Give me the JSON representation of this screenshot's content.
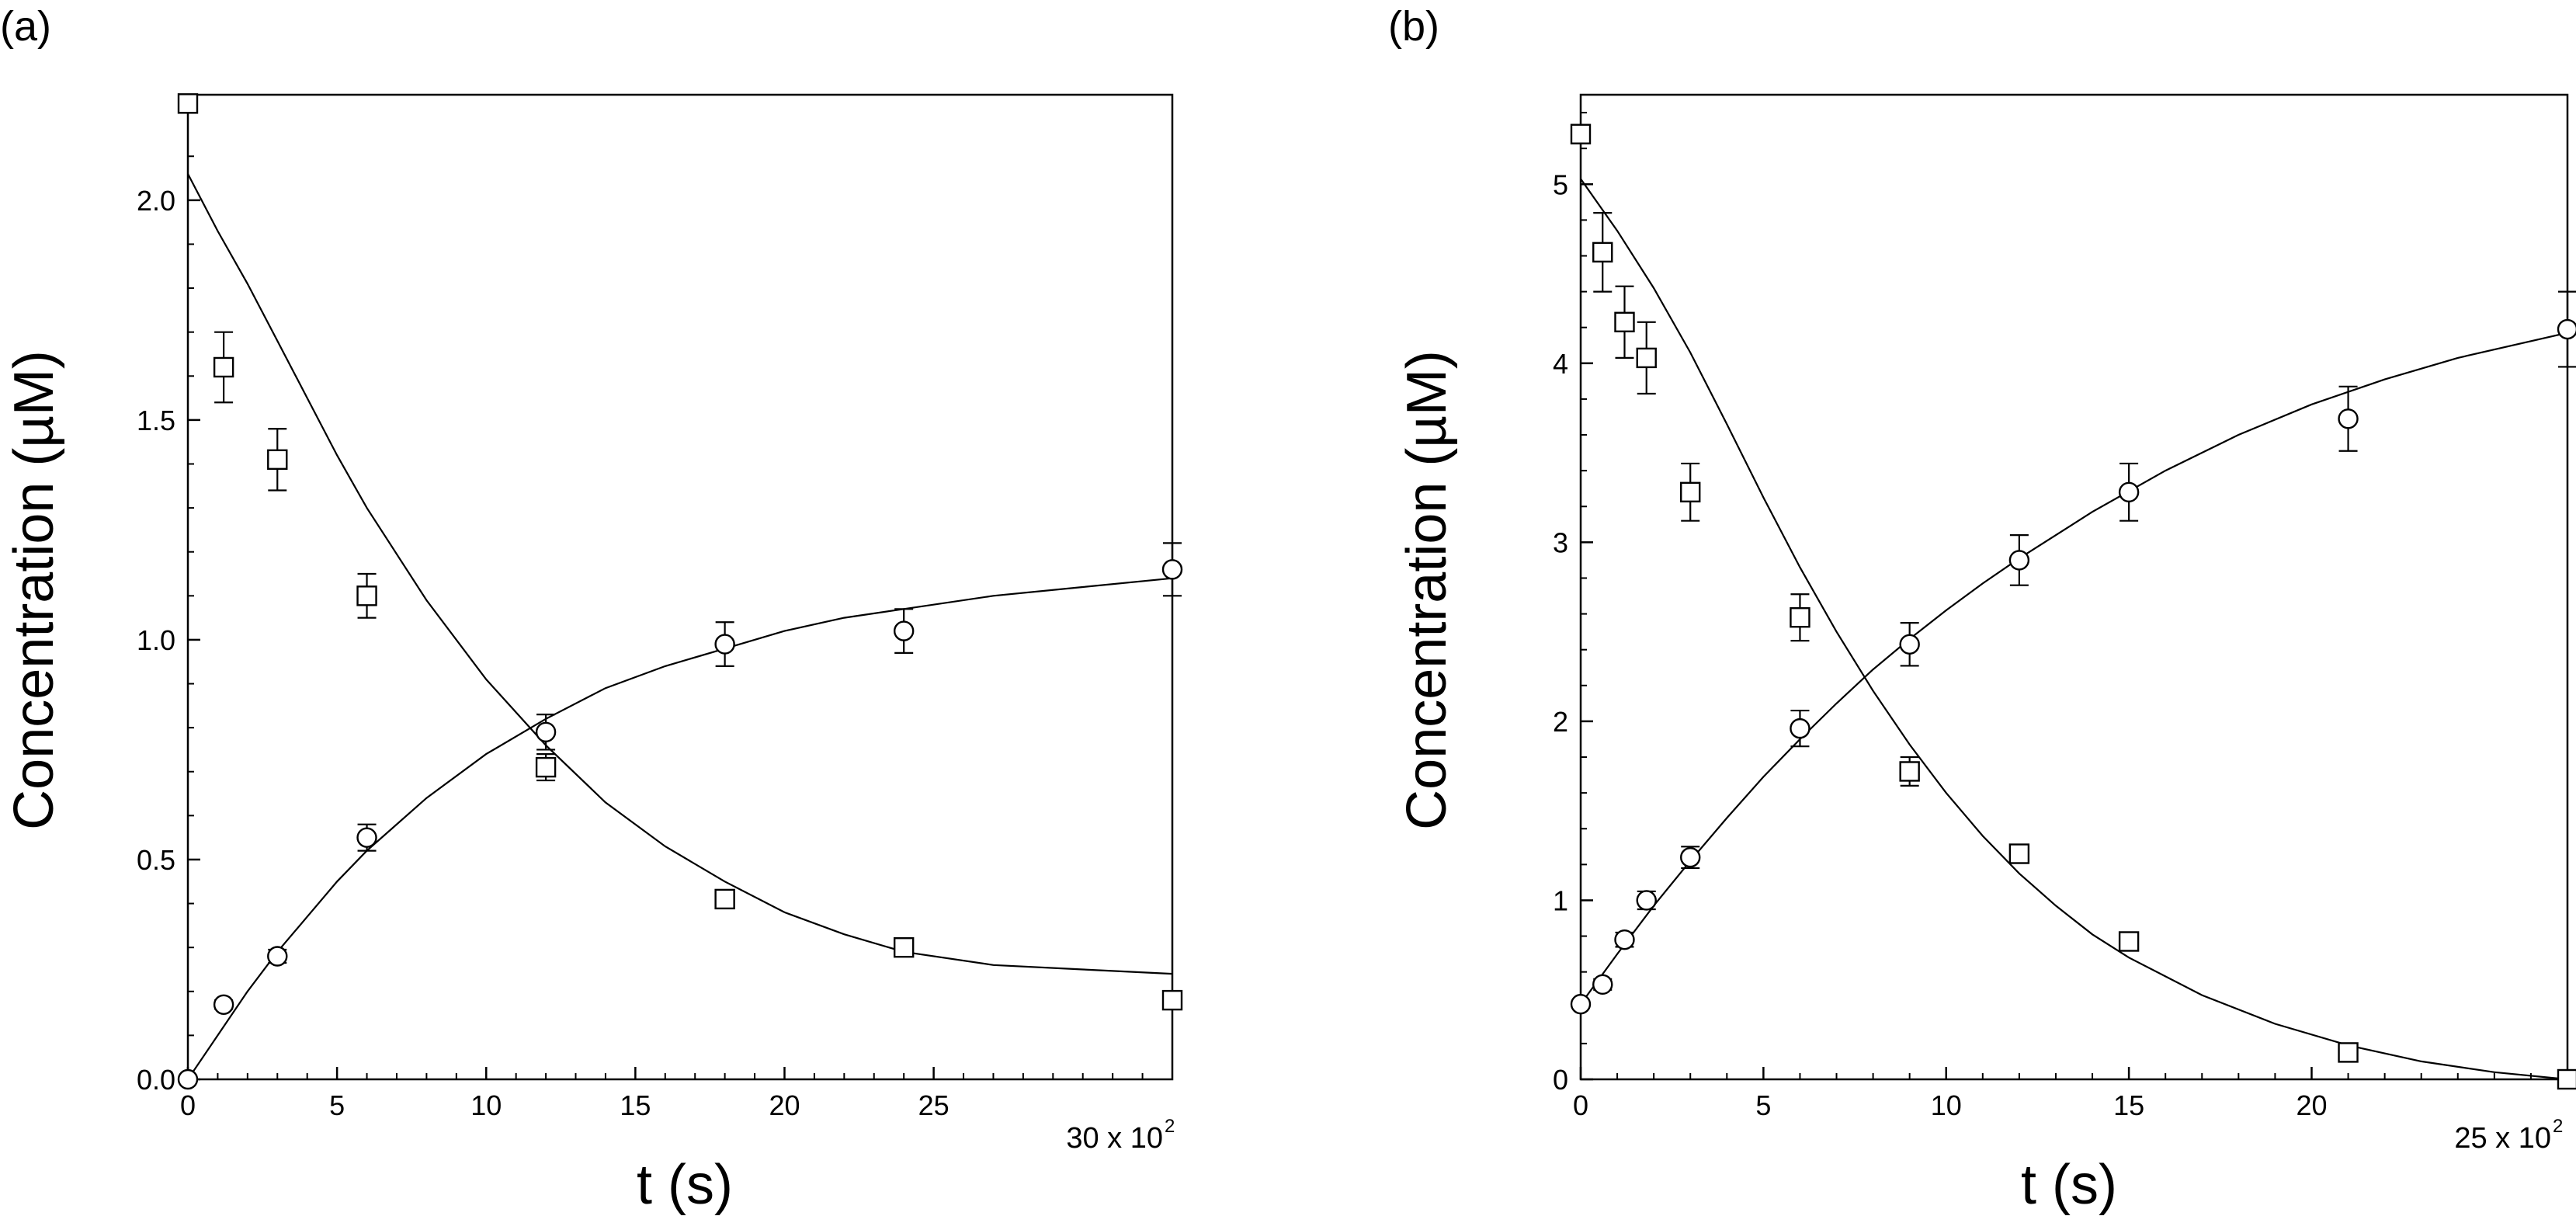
{
  "figure": {
    "background": "#ffffff",
    "ink": "#000000"
  },
  "chart_data": [
    {
      "type": "scatter",
      "panel_label": "(a)",
      "xlabel": "t (s)",
      "ylabel": "Concentration (µM)",
      "x_multiplier": {
        "text": "30 x 10",
        "exponent": "2"
      },
      "xlim": [
        0,
        33
      ],
      "ylim": [
        0,
        2.24
      ],
      "x_ticks": [
        0,
        5,
        10,
        15,
        20,
        25
      ],
      "x_tick_labels": [
        "0",
        "5",
        "10",
        "15",
        "20",
        "25"
      ],
      "y_ticks": [
        0,
        0.5,
        1.0,
        1.5,
        2.0
      ],
      "y_tick_labels": [
        "0.0",
        "0.5",
        "1.0",
        "1.5",
        "2.0"
      ],
      "grid": false,
      "series": [
        {
          "marker": "square",
          "points": [
            {
              "x": 0,
              "y": 2.22,
              "err": 0
            },
            {
              "x": 1.2,
              "y": 1.62,
              "err": 0.08
            },
            {
              "x": 3,
              "y": 1.41,
              "err": 0.07
            },
            {
              "x": 6,
              "y": 1.1,
              "err": 0.05
            },
            {
              "x": 12,
              "y": 0.71,
              "err": 0.03
            },
            {
              "x": 18,
              "y": 0.41,
              "err": 0.02
            },
            {
              "x": 24,
              "y": 0.3,
              "err": 0.02
            },
            {
              "x": 33,
              "y": 0.18,
              "err": 0.02
            }
          ],
          "fit": [
            [
              0,
              2.06
            ],
            [
              1,
              1.93
            ],
            [
              2,
              1.81
            ],
            [
              3,
              1.68
            ],
            [
              4,
              1.55
            ],
            [
              5,
              1.42
            ],
            [
              6,
              1.3
            ],
            [
              8,
              1.09
            ],
            [
              10,
              0.91
            ],
            [
              12,
              0.76
            ],
            [
              14,
              0.63
            ],
            [
              16,
              0.53
            ],
            [
              18,
              0.45
            ],
            [
              20,
              0.38
            ],
            [
              22,
              0.33
            ],
            [
              24,
              0.29
            ],
            [
              27,
              0.26
            ],
            [
              30,
              0.25
            ],
            [
              33,
              0.24
            ]
          ]
        },
        {
          "marker": "circle",
          "points": [
            {
              "x": 0,
              "y": 0.0,
              "err": 0
            },
            {
              "x": 1.2,
              "y": 0.17,
              "err": 0.01
            },
            {
              "x": 3,
              "y": 0.28,
              "err": 0.015
            },
            {
              "x": 6,
              "y": 0.55,
              "err": 0.03
            },
            {
              "x": 12,
              "y": 0.79,
              "err": 0.04
            },
            {
              "x": 18,
              "y": 0.99,
              "err": 0.05
            },
            {
              "x": 24,
              "y": 1.02,
              "err": 0.05
            },
            {
              "x": 33,
              "y": 1.16,
              "err": 0.06
            }
          ],
          "fit": [
            [
              0,
              0.0
            ],
            [
              1,
              0.1
            ],
            [
              2,
              0.2
            ],
            [
              3,
              0.29
            ],
            [
              4,
              0.37
            ],
            [
              5,
              0.45
            ],
            [
              6,
              0.52
            ],
            [
              8,
              0.64
            ],
            [
              10,
              0.74
            ],
            [
              12,
              0.82
            ],
            [
              14,
              0.89
            ],
            [
              16,
              0.94
            ],
            [
              18,
              0.98
            ],
            [
              20,
              1.02
            ],
            [
              22,
              1.05
            ],
            [
              24,
              1.07
            ],
            [
              27,
              1.1
            ],
            [
              30,
              1.12
            ],
            [
              33,
              1.14
            ]
          ]
        }
      ]
    },
    {
      "type": "scatter",
      "panel_label": "(b)",
      "xlabel": "t (s)",
      "ylabel": "Concentration (µM)",
      "x_multiplier": {
        "text": "25 x 10",
        "exponent": "2"
      },
      "xlim": [
        0,
        27
      ],
      "ylim": [
        0,
        5.5
      ],
      "x_ticks": [
        0,
        5,
        10,
        15,
        20
      ],
      "x_tick_labels": [
        "0",
        "5",
        "10",
        "15",
        "20"
      ],
      "y_ticks": [
        0,
        1,
        2,
        3,
        4,
        5
      ],
      "y_tick_labels": [
        "0",
        "1",
        "2",
        "3",
        "4",
        "5"
      ],
      "grid": false,
      "series": [
        {
          "marker": "square",
          "points": [
            {
              "x": 0,
              "y": 5.28,
              "err": 0
            },
            {
              "x": 0.6,
              "y": 4.62,
              "err": 0.22
            },
            {
              "x": 1.2,
              "y": 4.23,
              "err": 0.2
            },
            {
              "x": 1.8,
              "y": 4.03,
              "err": 0.2
            },
            {
              "x": 3,
              "y": 3.28,
              "err": 0.16
            },
            {
              "x": 6,
              "y": 2.58,
              "err": 0.13
            },
            {
              "x": 9,
              "y": 1.72,
              "err": 0.08
            },
            {
              "x": 12,
              "y": 1.26,
              "err": 0.04
            },
            {
              "x": 15,
              "y": 0.77,
              "err": 0.04
            },
            {
              "x": 21,
              "y": 0.15,
              "err": 0.03
            },
            {
              "x": 27,
              "y": 0.0,
              "err": 0
            }
          ],
          "fit": [
            [
              0,
              5.03
            ],
            [
              1,
              4.74
            ],
            [
              2,
              4.42
            ],
            [
              3,
              4.06
            ],
            [
              4,
              3.66
            ],
            [
              5,
              3.25
            ],
            [
              6,
              2.86
            ],
            [
              7,
              2.5
            ],
            [
              8,
              2.17
            ],
            [
              9,
              1.87
            ],
            [
              10,
              1.6
            ],
            [
              11,
              1.36
            ],
            [
              12,
              1.15
            ],
            [
              13,
              0.97
            ],
            [
              14,
              0.81
            ],
            [
              15,
              0.68
            ],
            [
              17,
              0.47
            ],
            [
              19,
              0.31
            ],
            [
              21,
              0.19
            ],
            [
              23,
              0.1
            ],
            [
              25,
              0.04
            ],
            [
              27,
              0.0
            ]
          ]
        },
        {
          "marker": "circle",
          "points": [
            {
              "x": 0,
              "y": 0.42,
              "err": 0.02
            },
            {
              "x": 0.6,
              "y": 0.53,
              "err": 0.03
            },
            {
              "x": 1.2,
              "y": 0.78,
              "err": 0.04
            },
            {
              "x": 1.8,
              "y": 1.0,
              "err": 0.05
            },
            {
              "x": 3,
              "y": 1.24,
              "err": 0.06
            },
            {
              "x": 6,
              "y": 1.96,
              "err": 0.1
            },
            {
              "x": 9,
              "y": 2.43,
              "err": 0.12
            },
            {
              "x": 12,
              "y": 2.9,
              "err": 0.14
            },
            {
              "x": 15,
              "y": 3.28,
              "err": 0.16
            },
            {
              "x": 21,
              "y": 3.69,
              "err": 0.18
            },
            {
              "x": 27,
              "y": 4.19,
              "err": 0.21
            }
          ],
          "fit": [
            [
              0,
              0.42
            ],
            [
              1,
              0.7
            ],
            [
              2,
              0.97
            ],
            [
              3,
              1.22
            ],
            [
              4,
              1.46
            ],
            [
              5,
              1.69
            ],
            [
              6,
              1.9
            ],
            [
              7,
              2.1
            ],
            [
              8,
              2.29
            ],
            [
              9,
              2.46
            ],
            [
              10,
              2.62
            ],
            [
              11,
              2.77
            ],
            [
              12,
              2.91
            ],
            [
              14,
              3.17
            ],
            [
              16,
              3.4
            ],
            [
              18,
              3.6
            ],
            [
              20,
              3.77
            ],
            [
              22,
              3.91
            ],
            [
              24,
              4.03
            ],
            [
              27,
              4.17
            ]
          ]
        }
      ]
    }
  ]
}
